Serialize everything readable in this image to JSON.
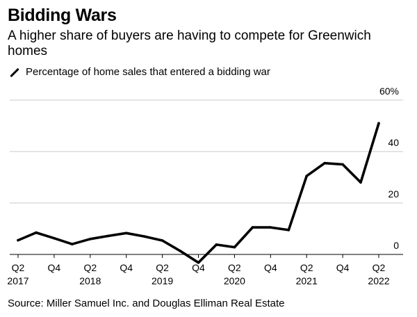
{
  "header": {
    "title": "Bidding Wars",
    "subtitle": "A higher share of buyers are having to compete for Greenwich homes"
  },
  "footer": {
    "source": "Source: Miller Samuel Inc. and Douglas Elliman Real Estate"
  },
  "colors": {
    "line": "#000000",
    "grid": "#c8c8c8"
  },
  "chart_data": {
    "type": "line",
    "title": "Bidding Wars",
    "subtitle": "A higher share of buyers are having to compete for Greenwich homes",
    "xlabel": "",
    "ylabel": "",
    "ylim": [
      0,
      60
    ],
    "y_ticks": [
      {
        "value": 0,
        "label": "0"
      },
      {
        "value": 20,
        "label": "20"
      },
      {
        "value": 40,
        "label": "40"
      },
      {
        "value": 60,
        "label": "60%"
      }
    ],
    "x_ticks": [
      {
        "index": 0,
        "quarter": "Q2",
        "year": "2017"
      },
      {
        "index": 2,
        "quarter": "Q4",
        "year": ""
      },
      {
        "index": 4,
        "quarter": "Q2",
        "year": "2018"
      },
      {
        "index": 6,
        "quarter": "Q4",
        "year": ""
      },
      {
        "index": 8,
        "quarter": "Q2",
        "year": "2019"
      },
      {
        "index": 10,
        "quarter": "Q4",
        "year": ""
      },
      {
        "index": 12,
        "quarter": "Q2",
        "year": "2020"
      },
      {
        "index": 14,
        "quarter": "Q4",
        "year": ""
      },
      {
        "index": 16,
        "quarter": "Q2",
        "year": "2021"
      },
      {
        "index": 18,
        "quarter": "Q4",
        "year": ""
      },
      {
        "index": 20,
        "quarter": "Q2",
        "year": "2022"
      }
    ],
    "legend": "top-left",
    "grid": true,
    "series": [
      {
        "name": "Percentage of home sales that entered a bidding war",
        "x": [
          "Q2 2017",
          "Q3 2017",
          "Q4 2017",
          "Q1 2018",
          "Q2 2018",
          "Q3 2018",
          "Q4 2018",
          "Q1 2019",
          "Q2 2019",
          "Q3 2019",
          "Q4 2019",
          "Q1 2020",
          "Q2 2020",
          "Q3 2020",
          "Q4 2020",
          "Q1 2021",
          "Q2 2021",
          "Q3 2021",
          "Q4 2021",
          "Q1 2022",
          "Q2 2022"
        ],
        "values": [
          5.5,
          8.5,
          6.3,
          4.0,
          6.0,
          7.2,
          8.3,
          7.0,
          5.4,
          1.3,
          -3.2,
          3.8,
          2.8,
          10.5,
          10.5,
          9.5,
          30.5,
          35.5,
          35.0,
          28.0,
          51.0
        ]
      }
    ]
  }
}
